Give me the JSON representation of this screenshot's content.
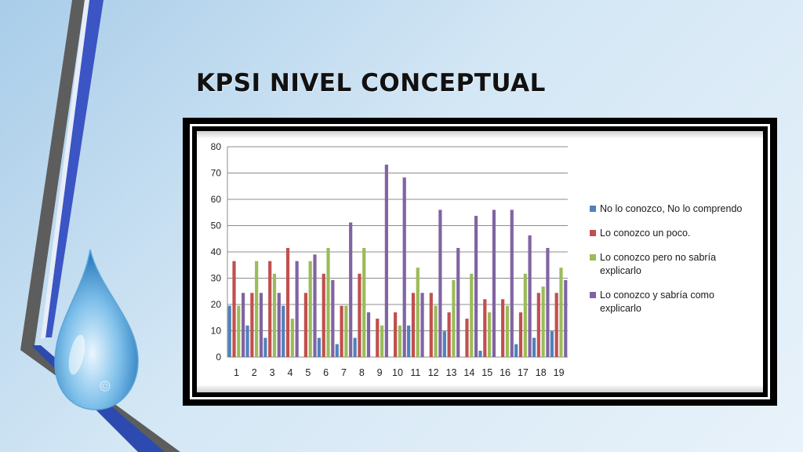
{
  "slide": {
    "title": "KPSI NIVEL CONCEPTUAL"
  },
  "decor": {
    "background_icon": "water-drop-icon",
    "stripe_colors": [
      "#5d5d5d",
      "#3b55c4",
      "#2c4ab0"
    ]
  },
  "chart_data": {
    "type": "bar",
    "title": "",
    "xlabel": "",
    "ylabel": "",
    "ylim": [
      0,
      80
    ],
    "yticks": [
      0,
      10,
      20,
      30,
      40,
      50,
      60,
      70,
      80
    ],
    "grid": true,
    "legend_position": "right",
    "categories": [
      "1",
      "2",
      "3",
      "4",
      "5",
      "6",
      "7",
      "8",
      "9",
      "10",
      "11",
      "12",
      "13",
      "14",
      "15",
      "16",
      "17",
      "18",
      "19"
    ],
    "series": [
      {
        "name": "No lo conozco, No lo comprendo",
        "color": "#4f81bd",
        "values": [
          19.5,
          12,
          7.3,
          19.5,
          0,
          7.3,
          4.9,
          7.3,
          0,
          0,
          12,
          0,
          9.8,
          0,
          2.4,
          0,
          4.9,
          7.3,
          9.8
        ]
      },
      {
        "name": "Lo conozco un poco.",
        "color": "#c0504d",
        "values": [
          36.5,
          24.4,
          36.5,
          41.5,
          24.4,
          31.7,
          19.5,
          31.7,
          14.6,
          17,
          24.4,
          24.4,
          17,
          14.6,
          22,
          22,
          17,
          24.4,
          24.4
        ]
      },
      {
        "name": "Lo conozco pero no sabría explicarlo",
        "color": "#9bbb59",
        "values": [
          19.5,
          36.5,
          31.7,
          14.6,
          36.5,
          41.5,
          19.5,
          41.5,
          12,
          12,
          34,
          19.5,
          29.3,
          31.7,
          17,
          19.5,
          31.7,
          26.8,
          34
        ]
      },
      {
        "name": "Lo conozco y sabría como explicarlo",
        "color": "#8064a2",
        "values": [
          24.4,
          24.4,
          24.4,
          36.5,
          39,
          29.3,
          51.2,
          17,
          73.2,
          68.3,
          24.4,
          56,
          41.5,
          53.7,
          56,
          56,
          46.3,
          41.5,
          29.3
        ]
      }
    ]
  }
}
